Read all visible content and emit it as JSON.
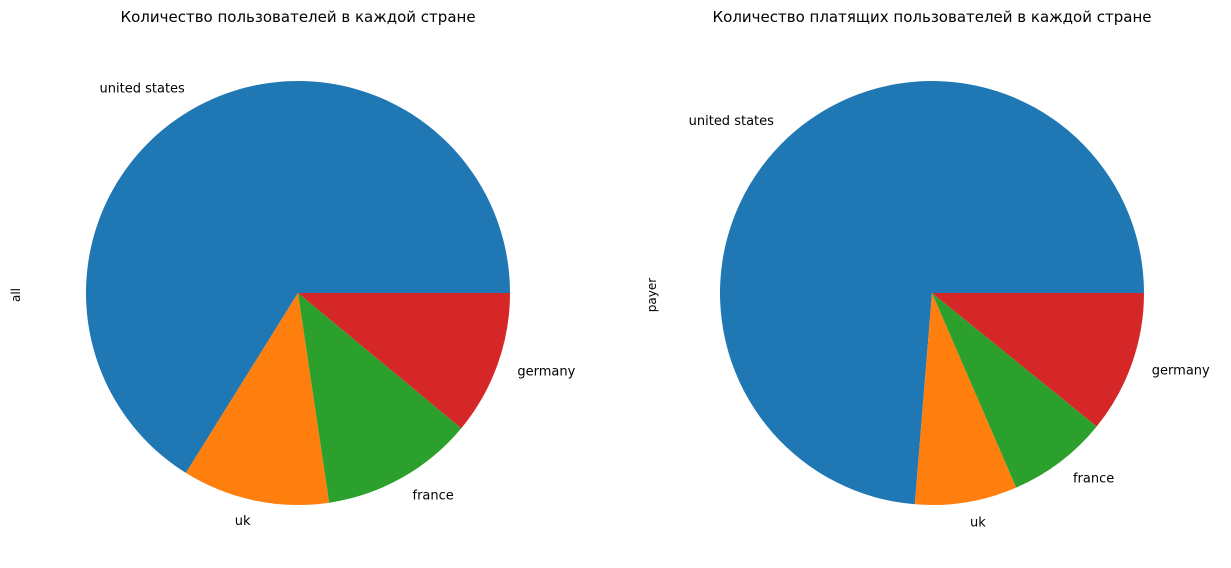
{
  "chart_data": [
    {
      "type": "pie",
      "title": "Количество пользователей в каждой стране",
      "ylabel": "all",
      "categories": [
        "united states",
        "uk",
        "france",
        "germany"
      ],
      "values": [
        0.6613,
        0.1122,
        0.1164,
        0.1101
      ]
    },
    {
      "type": "pie",
      "title": "Количество платящих пользователей в каждой стране",
      "ylabel": "payer",
      "categories": [
        "united states",
        "uk",
        "france",
        "germany"
      ],
      "values": [
        0.7371,
        0.0779,
        0.0766,
        0.1084
      ]
    }
  ],
  "colors": [
    "#1f77b4",
    "#ff7f0e",
    "#2ca02c",
    "#d62728"
  ]
}
